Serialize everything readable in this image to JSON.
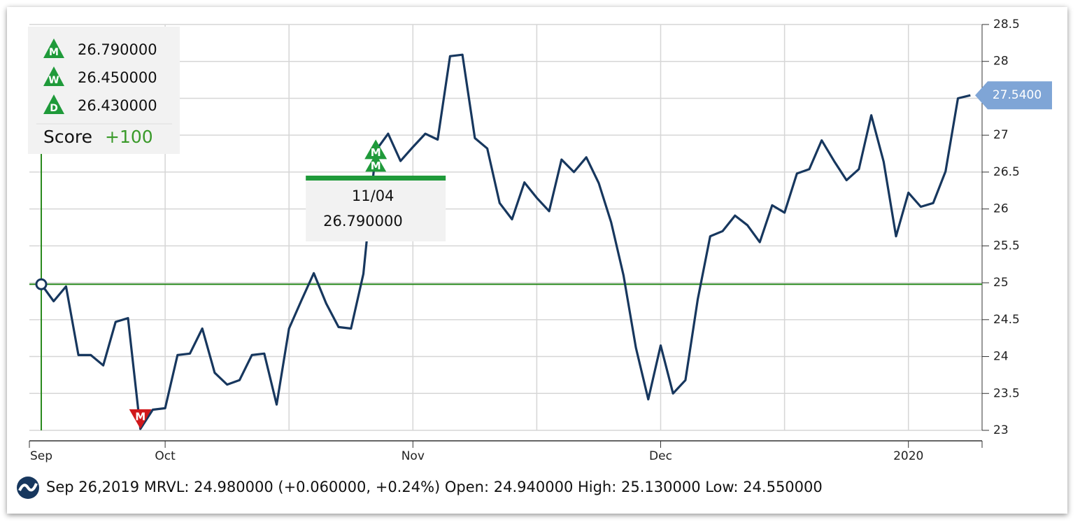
{
  "chart_data": {
    "type": "line",
    "categories": [
      "Sep",
      null,
      null,
      null,
      null,
      null,
      null,
      null,
      null,
      null,
      "Oct",
      null,
      null,
      null,
      null,
      null,
      null,
      null,
      null,
      null,
      null,
      null,
      null,
      null,
      null,
      null,
      null,
      null,
      null,
      null,
      "Nov",
      null,
      null,
      null,
      null,
      null,
      null,
      null,
      null,
      null,
      null,
      null,
      null,
      null,
      null,
      null,
      null,
      null,
      null,
      null,
      "Dec",
      null,
      null,
      null,
      null,
      null,
      null,
      null,
      null,
      null,
      null,
      null,
      null,
      null,
      null,
      null,
      null,
      null,
      null,
      null,
      "2020",
      null,
      null,
      null,
      null,
      null
    ],
    "values": [
      24.98,
      24.75,
      24.95,
      24.02,
      24.02,
      23.88,
      24.47,
      24.52,
      23.02,
      23.28,
      23.3,
      24.02,
      24.04,
      24.38,
      23.78,
      23.62,
      23.68,
      24.02,
      24.04,
      23.35,
      24.38,
      24.76,
      25.13,
      24.72,
      24.4,
      24.38,
      25.12,
      26.79,
      27.02,
      26.65,
      26.84,
      27.02,
      26.94,
      28.07,
      28.09,
      26.96,
      26.82,
      26.08,
      25.86,
      26.36,
      26.15,
      25.97,
      26.67,
      26.5,
      26.7,
      26.35,
      25.82,
      25.1,
      24.12,
      23.42,
      24.15,
      23.5,
      23.68,
      24.78,
      25.63,
      25.7,
      25.91,
      25.78,
      25.55,
      26.05,
      25.95,
      26.48,
      26.54,
      26.93,
      26.65,
      26.39,
      26.54,
      27.27,
      26.64,
      25.63,
      26.22,
      26.03,
      26.08,
      26.51,
      27.5,
      27.54
    ],
    "color": "#17375e",
    "last_value_label": "27.5400",
    "ylim": [
      23,
      28.5
    ],
    "yticks": [
      23,
      23.5,
      24,
      24.5,
      25,
      25.5,
      26,
      26.5,
      27,
      27.5,
      28,
      28.5
    ],
    "grid": true,
    "reference_line": 24.98,
    "reference_color": "#2a8a1e",
    "markers": [
      {
        "at": 8,
        "label": "M",
        "direction": "down",
        "color": "#d0181b"
      },
      {
        "at": 27,
        "label": "M",
        "direction": "up",
        "color": "#1f9a3a"
      }
    ],
    "tooltip": {
      "date": "11/04",
      "value": "26.790000"
    },
    "signals": [
      {
        "icon": "M",
        "text": "26.790000"
      },
      {
        "icon": "W",
        "text": "26.450000"
      },
      {
        "icon": "D",
        "text": "26.430000"
      }
    ],
    "score_label": "Score",
    "score": "+100",
    "footer": "Sep 26,2019 MRVL: 24.980000 (+0.060000, +0.24%) Open: 24.940000 High: 25.130000 Low: 24.550000"
  }
}
